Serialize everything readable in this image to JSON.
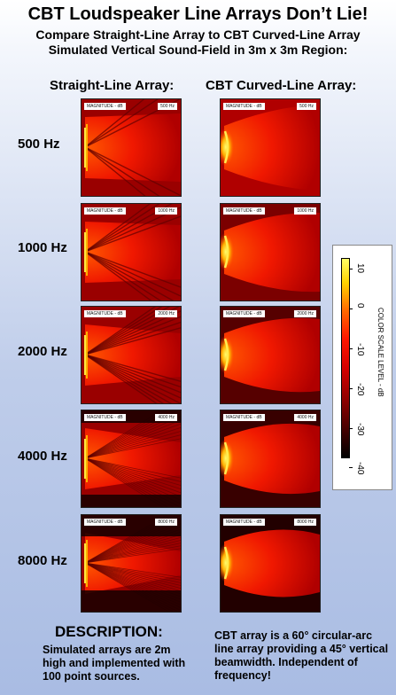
{
  "header": {
    "title": "CBT Loudspeaker Line Arrays Don’t Lie!",
    "subtitle_line1": "Compare Straight-Line Array to CBT Curved-Line Array",
    "subtitle_line2": "Simulated Vertical Sound-Field in 3m x 3m Region:"
  },
  "columns": {
    "left": "Straight-Line Array:",
    "right": "CBT Curved-Line Array:"
  },
  "rows": [
    {
      "label": "500 Hz",
      "tag": "500 Hz"
    },
    {
      "label": "1000 Hz",
      "tag": "1000 Hz"
    },
    {
      "label": "2000 Hz",
      "tag": "2000 Hz"
    },
    {
      "label": "4000 Hz",
      "tag": "4000 Hz"
    },
    {
      "label": "8000 Hz",
      "tag": "8000 Hz"
    }
  ],
  "plot_tag": "MAGNITUDE - dB",
  "colorbar": {
    "title": "COLOR SCALE LEVEL - dB",
    "ticks": [
      "10",
      "0",
      "-10",
      "-20",
      "-30",
      "-40"
    ],
    "gradient_colors": [
      "#ffff66",
      "#ffd200",
      "#ff6a00",
      "#ff1800",
      "#d60000",
      "#8a0000",
      "#3a0000",
      "#000000"
    ]
  },
  "description": {
    "heading": "DESCRIPTION:",
    "left_text": "Simulated arrays are 2m high and implemented with 100 point sources.",
    "right_text": "CBT array is a 60° circular-arc line array providing a 45° vertical beamwidth. Independent of frequency!"
  }
}
